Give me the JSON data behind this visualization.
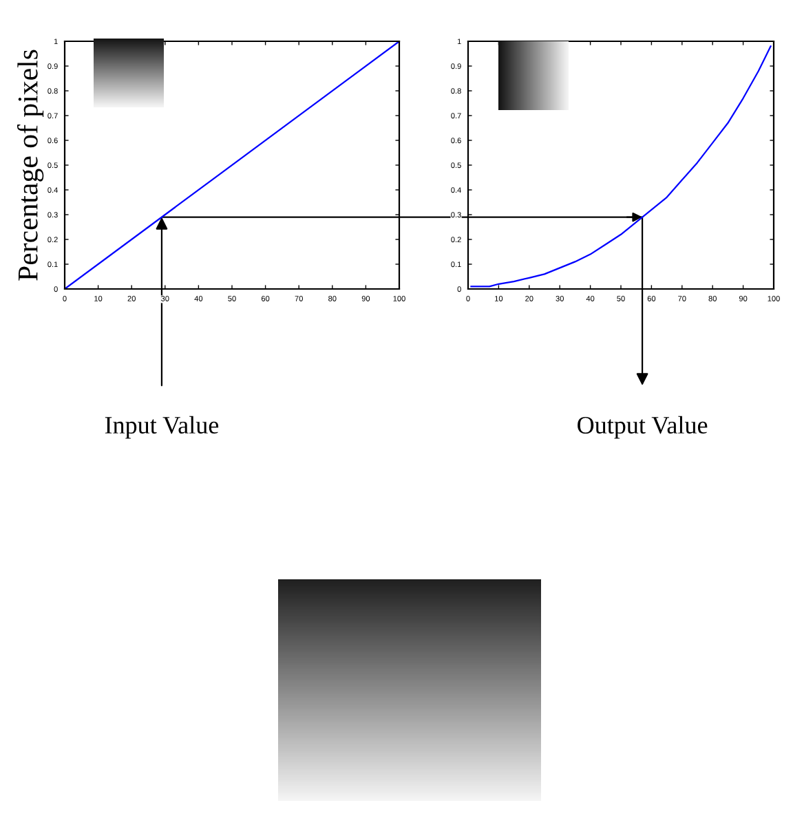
{
  "chart_data": [
    {
      "type": "line",
      "ylabel": "Percentage of pixels",
      "x": [
        0,
        100
      ],
      "series": [
        {
          "color": "#0000ff",
          "values": [
            0,
            1
          ]
        }
      ],
      "xlim": [
        0,
        100
      ],
      "ylim": [
        0,
        1
      ],
      "xticks": [
        0,
        10,
        20,
        30,
        40,
        50,
        60,
        70,
        80,
        90,
        100
      ],
      "yticks": [
        0,
        0.1,
        0.2,
        0.3,
        0.4,
        0.5,
        0.6,
        0.7,
        0.8,
        0.9,
        1
      ],
      "annotations": [
        {
          "text": "Input Value",
          "x": 29,
          "y": 0.29
        }
      ],
      "ref_lines": [
        {
          "axis": "y",
          "value": 0.29,
          "color": "#000000"
        }
      ]
    },
    {
      "type": "line",
      "x": [
        1,
        7,
        10,
        15,
        20,
        25,
        30,
        35,
        40,
        45,
        50,
        55,
        60,
        65,
        70,
        75,
        80,
        85,
        90,
        95,
        99
      ],
      "series": [
        {
          "color": "#0000ff",
          "values": [
            0.01,
            0.01,
            0.02,
            0.03,
            0.045,
            0.06,
            0.085,
            0.11,
            0.14,
            0.18,
            0.22,
            0.27,
            0.32,
            0.37,
            0.44,
            0.51,
            0.59,
            0.67,
            0.77,
            0.88,
            0.98
          ]
        }
      ],
      "xlim": [
        0,
        100
      ],
      "ylim": [
        0,
        1
      ],
      "xticks": [
        0,
        10,
        20,
        30,
        40,
        50,
        60,
        70,
        80,
        90,
        100
      ],
      "yticks": [
        0,
        0.1,
        0.2,
        0.3,
        0.4,
        0.5,
        0.6,
        0.7,
        0.8,
        0.9,
        1
      ],
      "annotations": [
        {
          "text": "Output Value",
          "x": 57,
          "y": 0.29
        }
      ],
      "ref_lines": [
        {
          "axis": "y",
          "value": 0.29,
          "color": "#000000"
        }
      ]
    }
  ]
}
